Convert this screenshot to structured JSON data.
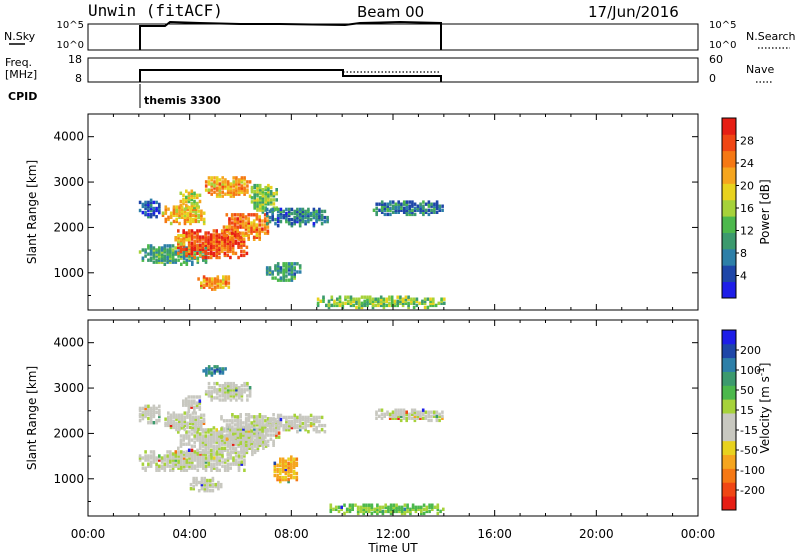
{
  "header": {
    "station": "Unwin (fitACF)",
    "beam": "Beam 00",
    "date": "17/Jun/2016"
  },
  "nsky_panel": {
    "label": "N.Sky",
    "right_label": "N.Search",
    "ticks_left": [
      "10^5",
      "10^0"
    ],
    "ticks_right": [
      "10^5",
      "10^0"
    ]
  },
  "freq_panel": {
    "label_line1": "Freq.",
    "label_line2": "[MHz]",
    "right_label": "Nave",
    "ticks_left": [
      "18",
      "8"
    ],
    "ticks_right": [
      "60",
      "0"
    ]
  },
  "cpid": {
    "label": "CPID",
    "name": "themis 3300"
  },
  "x_axis": {
    "label": "Time UT",
    "ticks": [
      "00:00",
      "04:00",
      "08:00",
      "12:00",
      "16:00",
      "20:00",
      "00:00"
    ],
    "range_hours": [
      0,
      24
    ]
  },
  "colors": {
    "power_scale": [
      "#1e1ee8",
      "#1e46a8",
      "#2d7fa8",
      "#3c9a6e",
      "#4cb84c",
      "#a6d23a",
      "#e8d21e",
      "#f5a51e",
      "#f57814",
      "#f04614",
      "#e61e14"
    ],
    "velocity_scale": [
      "#e61e14",
      "#f04614",
      "#f57814",
      "#f5a51e",
      "#e8d21e",
      "#c8c8c0",
      "#c8c8c0",
      "#a6d23a",
      "#4cb84c",
      "#3c9a6e",
      "#2d7fa8",
      "#1e46a8",
      "#1e1ee8"
    ]
  },
  "chart_data": [
    {
      "type": "heatmap",
      "title": "Power",
      "xlabel": "Time UT",
      "ylabel": "Slant Range [km]",
      "xlim_hours": [
        0,
        24
      ],
      "ylim": [
        180,
        4500
      ],
      "yticks": [
        1000,
        2000,
        3000,
        4000
      ],
      "colorbar": {
        "label": "Power [dB]",
        "ticks": [
          "4",
          "8",
          "12",
          "16",
          "20",
          "24",
          "28"
        ],
        "range": [
          0,
          32
        ]
      },
      "regions": [
        {
          "t": [
            2.0,
            4.6
          ],
          "r": [
            1150,
            1600
          ],
          "v": 11
        },
        {
          "t": [
            3.5,
            6.3
          ],
          "r": [
            1300,
            1900
          ],
          "v": 27
        },
        {
          "t": [
            5.3,
            7.1
          ],
          "r": [
            1700,
            2250
          ],
          "v": 25
        },
        {
          "t": [
            2.9,
            4.6
          ],
          "r": [
            2050,
            2450
          ],
          "v": 21
        },
        {
          "t": [
            3.6,
            4.4
          ],
          "r": [
            2400,
            2800
          ],
          "v": 18
        },
        {
          "t": [
            4.6,
            6.4
          ],
          "r": [
            2650,
            3100
          ],
          "v": 22
        },
        {
          "t": [
            6.4,
            7.4
          ],
          "r": [
            2300,
            2900
          ],
          "v": 14
        },
        {
          "t": [
            7.0,
            9.4
          ],
          "r": [
            2000,
            2400
          ],
          "v": 7
        },
        {
          "t": [
            7.0,
            8.3
          ],
          "r": [
            800,
            1200
          ],
          "v": 10
        },
        {
          "t": [
            4.3,
            5.5
          ],
          "r": [
            600,
            900
          ],
          "v": 22
        },
        {
          "t": [
            3.4,
            4.0
          ],
          "r": [
            1600,
            1800
          ],
          "v": 20
        },
        {
          "t": [
            11.2,
            14.0
          ],
          "r": [
            2250,
            2550
          ],
          "v": 8
        },
        {
          "t": [
            9.0,
            14.0
          ],
          "r": [
            200,
            450
          ],
          "v": 14
        },
        {
          "t": [
            2.0,
            2.8
          ],
          "r": [
            2200,
            2600
          ],
          "v": 5
        }
      ]
    },
    {
      "type": "heatmap",
      "title": "Velocity",
      "xlabel": "Time UT",
      "ylabel": "Slant Range [km]",
      "xlim_hours": [
        0,
        24
      ],
      "ylim": [
        180,
        4500
      ],
      "yticks": [
        1000,
        2000,
        3000,
        4000
      ],
      "colorbar": {
        "label": "Velocity [m s^-1]",
        "ticks": [
          "-200",
          "-100",
          "-50",
          "-15",
          "15",
          "50",
          "100",
          "200"
        ],
        "range": [
          -250,
          250
        ]
      },
      "regions": [
        {
          "t": [
            2.0,
            6.2
          ],
          "r": [
            1150,
            1600
          ],
          "v": 0
        },
        {
          "t": [
            3.5,
            7.0
          ],
          "r": [
            1500,
            2100
          ],
          "v": 0
        },
        {
          "t": [
            5.2,
            7.5
          ],
          "r": [
            1700,
            2400
          ],
          "v": 0
        },
        {
          "t": [
            3.0,
            4.6
          ],
          "r": [
            2050,
            2450
          ],
          "v": 0
        },
        {
          "t": [
            3.7,
            4.4
          ],
          "r": [
            2450,
            2800
          ],
          "v": 0
        },
        {
          "t": [
            4.6,
            6.4
          ],
          "r": [
            2700,
            3100
          ],
          "v": 0
        },
        {
          "t": [
            7.0,
            9.3
          ],
          "r": [
            2000,
            2400
          ],
          "v": 0
        },
        {
          "t": [
            4.0,
            5.2
          ],
          "r": [
            700,
            1000
          ],
          "v": 0
        },
        {
          "t": [
            7.3,
            8.2
          ],
          "r": [
            900,
            1450
          ],
          "v": -110
        },
        {
          "t": [
            11.3,
            14.0
          ],
          "r": [
            2250,
            2500
          ],
          "v": 0
        },
        {
          "t": [
            9.5,
            14.0
          ],
          "r": [
            200,
            420
          ],
          "v": 60
        },
        {
          "t": [
            2.0,
            2.8
          ],
          "r": [
            2200,
            2600
          ],
          "v": 0
        },
        {
          "t": [
            4.5,
            5.4
          ],
          "r": [
            3250,
            3450
          ],
          "v": 150
        }
      ]
    }
  ]
}
